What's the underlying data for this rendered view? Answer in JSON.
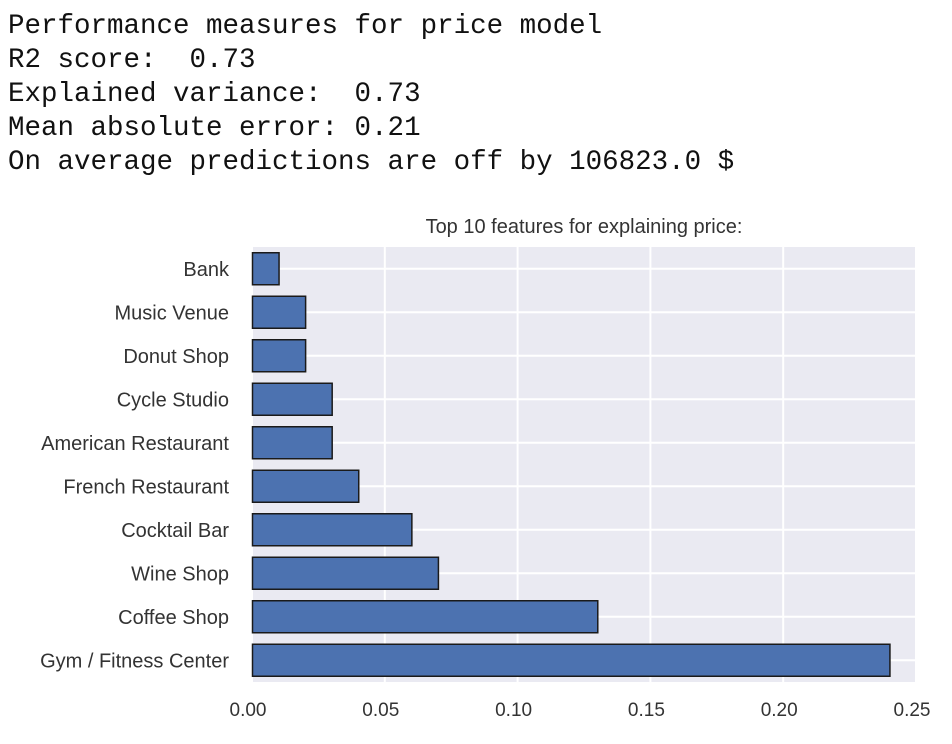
{
  "output": {
    "title_line": "Performance measures for price model",
    "r2_line": "R2 score:  0.73",
    "variance_line": "Explained variance:  0.73",
    "mae_line": "Mean absolute error: 0.21",
    "average_line": "On average predictions are off by 106823.0 $"
  },
  "chart_data": {
    "type": "bar",
    "orientation": "horizontal",
    "title": "Top 10 features for explaining price:",
    "categories": [
      "Gym / Fitness Center",
      "Coffee Shop",
      "Wine Shop",
      "Cocktail Bar",
      "French Restaurant",
      "American Restaurant",
      "Cycle Studio",
      "Donut Shop",
      "Music Venue",
      "Bank"
    ],
    "values": [
      0.24,
      0.13,
      0.07,
      0.06,
      0.04,
      0.03,
      0.03,
      0.02,
      0.02,
      0.01
    ],
    "xlim": [
      0,
      0.25
    ],
    "xticks": [
      "0.00",
      "0.05",
      "0.10",
      "0.15",
      "0.20",
      "0.25"
    ],
    "grid": true,
    "bar_color": "#4c72b0",
    "background_color": "#eaeaf2",
    "xlabel": "",
    "ylabel": ""
  }
}
